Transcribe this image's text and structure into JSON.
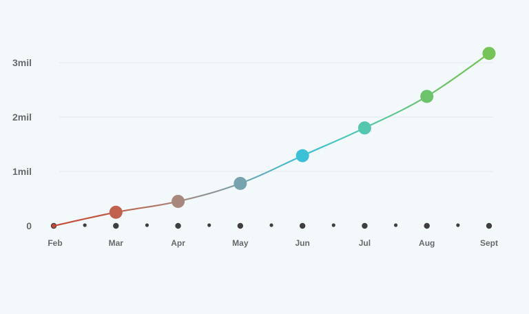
{
  "chart_data": {
    "type": "line",
    "title": "",
    "xlabel": "",
    "ylabel": "",
    "categories": [
      "Feb",
      "Mar",
      "Apr",
      "May",
      "Jun",
      "Jul",
      "Aug",
      "Sept"
    ],
    "series": [
      {
        "values": [
          0,
          250000,
          450000,
          780000,
          1290000,
          1800000,
          2380000,
          3170000
        ]
      }
    ],
    "point_colors": [
      "#c44a36",
      "#c0614d",
      "#a8877d",
      "#76a3ad",
      "#3cc0d8",
      "#55c7ae",
      "#6cc36c",
      "#74c458"
    ],
    "y_ticks": [
      {
        "value": 0,
        "label": "0"
      },
      {
        "value": 1000000,
        "label": "1mil"
      },
      {
        "value": 2000000,
        "label": "2mil"
      },
      {
        "value": 3000000,
        "label": "3mil"
      }
    ],
    "ylim": [
      0,
      3000000
    ],
    "grid": true,
    "legend": "none"
  }
}
